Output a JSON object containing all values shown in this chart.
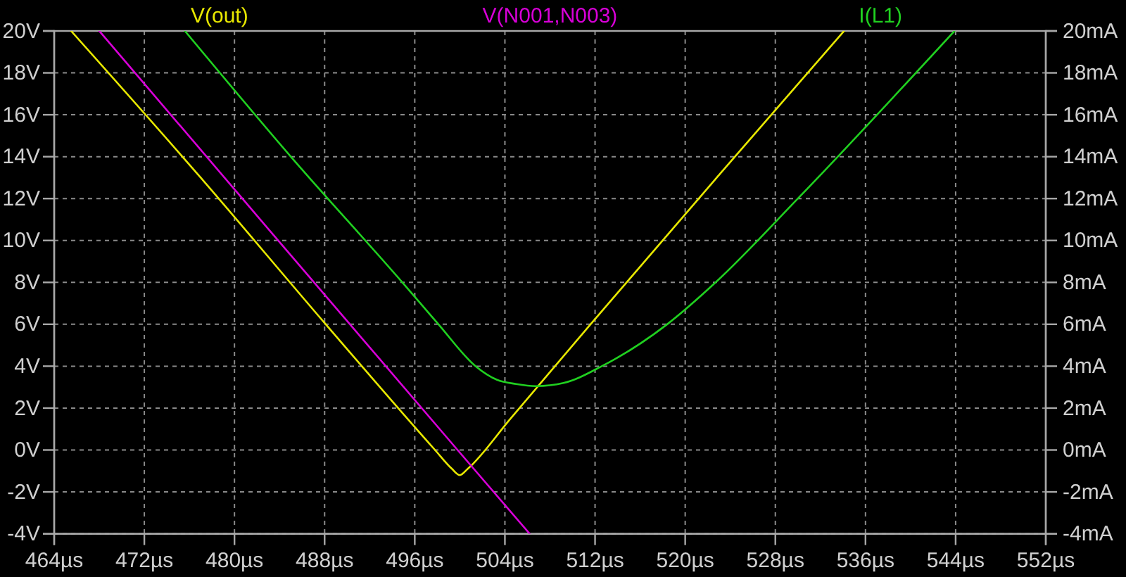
{
  "chart_data": {
    "type": "line",
    "legend": "top",
    "grid": true,
    "marker": "none",
    "xlim": [
      464,
      552
    ],
    "xticks": [
      {
        "value": 464,
        "label": "464µs"
      },
      {
        "value": 472,
        "label": "472µs"
      },
      {
        "value": 480,
        "label": "480µs"
      },
      {
        "value": 488,
        "label": "488µs"
      },
      {
        "value": 496,
        "label": "496µs"
      },
      {
        "value": 504,
        "label": "504µs"
      },
      {
        "value": 512,
        "label": "512µs"
      },
      {
        "value": 520,
        "label": "520µs"
      },
      {
        "value": 528,
        "label": "528µs"
      },
      {
        "value": 536,
        "label": "536µs"
      },
      {
        "value": 544,
        "label": "544µs"
      },
      {
        "value": 552,
        "label": "552µs"
      }
    ],
    "ylim": [
      -4,
      20
    ],
    "yticks": [
      {
        "value": -4,
        "label": "-4V"
      },
      {
        "value": -2,
        "label": "-2V"
      },
      {
        "value": 0,
        "label": "0V"
      },
      {
        "value": 2,
        "label": "2V"
      },
      {
        "value": 4,
        "label": "4V"
      },
      {
        "value": 6,
        "label": "6V"
      },
      {
        "value": 8,
        "label": "8V"
      },
      {
        "value": 10,
        "label": "10V"
      },
      {
        "value": 12,
        "label": "12V"
      },
      {
        "value": 14,
        "label": "14V"
      },
      {
        "value": 16,
        "label": "16V"
      },
      {
        "value": 18,
        "label": "18V"
      },
      {
        "value": 20,
        "label": "20V"
      }
    ],
    "y2lim": [
      -4,
      20
    ],
    "y2ticks": [
      {
        "value": -4,
        "label": "-4mA"
      },
      {
        "value": -2,
        "label": "-2mA"
      },
      {
        "value": 0,
        "label": "0mA"
      },
      {
        "value": 2,
        "label": "2mA"
      },
      {
        "value": 4,
        "label": "4mA"
      },
      {
        "value": 6,
        "label": "6mA"
      },
      {
        "value": 8,
        "label": "8mA"
      },
      {
        "value": 10,
        "label": "10mA"
      },
      {
        "value": 12,
        "label": "12mA"
      },
      {
        "value": 14,
        "label": "14mA"
      },
      {
        "value": 16,
        "label": "16mA"
      },
      {
        "value": 18,
        "label": "18mA"
      },
      {
        "value": 20,
        "label": "20mA"
      }
    ],
    "series": [
      {
        "name": "V(out)",
        "color": "#e8e800",
        "x": [
          465.5,
          477,
          488.1,
          497.8,
          499.3,
          500,
          500.7,
          504.5,
          511.6,
          522.8,
          534.1
        ],
        "values": [
          20,
          13,
          6,
          0,
          -0.9,
          -1.2,
          -0.9,
          1.5,
          6,
          13,
          20
        ]
      },
      {
        "name": "V(N001,N003)",
        "color": "#d800d8",
        "x": [
          468,
          480.7,
          499.8,
          506.2
        ],
        "values": [
          20,
          12,
          0,
          -4
        ]
      },
      {
        "name": "I(L1)",
        "color": "#20d020",
        "axis": "y2",
        "x": [
          475.6,
          485,
          494.9,
          498.1,
          501.4,
          503.3,
          505,
          506.7,
          509.2,
          512.6,
          518.4,
          522.7,
          530,
          543.9
        ],
        "values": [
          20,
          14,
          8,
          6,
          4,
          3.35,
          3.15,
          3.05,
          3.2,
          4,
          6,
          8,
          12,
          20
        ]
      }
    ]
  }
}
